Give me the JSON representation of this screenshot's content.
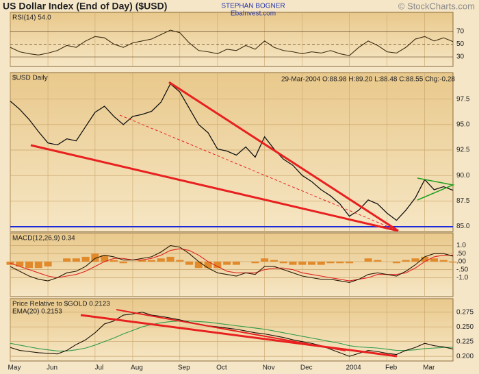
{
  "header": {
    "title": "US Dollar Index (End of Day) ($USD)",
    "author": "STEPHAN BOGNER",
    "site": "EbaInvest.com",
    "copyright": "© StockCharts.com",
    "quote": "29-Mar-2004 O:88.98 H:89.20 L:88.48 C:88.55 Chg:-0.28"
  },
  "chart_data": [
    {
      "type": "line",
      "label": "RSI(14) 54.0",
      "ylim": [
        15,
        100
      ],
      "yticks": [
        70,
        50,
        30
      ],
      "grid": true,
      "series": [
        {
          "color": "#3a2a10",
          "values": [
            45,
            38,
            35,
            33,
            36,
            40,
            48,
            45,
            55,
            62,
            60,
            50,
            45,
            52,
            55,
            58,
            65,
            72,
            68,
            52,
            40,
            38,
            35,
            42,
            40,
            48,
            42,
            55,
            45,
            40,
            38,
            35,
            38,
            36,
            40,
            35,
            32,
            45,
            55,
            48,
            38,
            36,
            45,
            58,
            62,
            55,
            60,
            54
          ]
        }
      ]
    },
    {
      "type": "line",
      "label": "$USD Daily",
      "ylim": [
        84.5,
        100.1
      ],
      "yticks": [
        {
          "value": 97.5,
          "label": "97.5"
        },
        {
          "value": 95,
          "label": "95.0"
        },
        {
          "value": 92.5,
          "label": "92.5"
        },
        {
          "value": 90,
          "label": "90.0"
        },
        {
          "value": 87.5,
          "label": "87.5"
        },
        {
          "value": 85,
          "label": "85.0"
        }
      ],
      "grid": true,
      "series": [
        {
          "color": "#111111",
          "values": [
            97.3,
            96.5,
            95.5,
            94.3,
            93.2,
            93.0,
            93.6,
            93.4,
            94.8,
            96.2,
            96.8,
            95.8,
            95.0,
            95.8,
            96.0,
            96.3,
            97.2,
            99.0,
            98.2,
            96.6,
            95.0,
            94.2,
            92.6,
            92.4,
            92.0,
            92.8,
            91.8,
            93.8,
            92.6,
            91.6,
            91.0,
            90.0,
            89.4,
            88.6,
            88.0,
            87.2,
            86.0,
            86.6,
            87.6,
            87.2,
            86.3,
            85.6,
            86.6,
            87.8,
            89.6,
            88.6,
            88.9,
            88.55
          ]
        }
      ]
    },
    {
      "type": "line",
      "label": "MACD(12,26,9) 0.34",
      "ylim": [
        -2.18,
        1.79
      ],
      "yticks": [
        {
          "value": 1,
          "label": "1.0"
        },
        {
          "value": 0.5,
          "label": ".50"
        },
        {
          "value": 0,
          "label": ".00"
        },
        {
          "value": -0.5,
          "label": "-.50"
        },
        {
          "value": -1,
          "label": "-1.0"
        }
      ],
      "grid": true,
      "series": [
        {
          "type": "bar",
          "color": "#e08a2c",
          "values": [
            -0.2,
            -0.3,
            -0.4,
            -0.4,
            -0.3,
            0,
            0.2,
            0.2,
            0.3,
            0.5,
            0.4,
            0.1,
            -0.1,
            0,
            0.1,
            0.1,
            0.2,
            0.3,
            0.1,
            -0.2,
            -0.4,
            -0.4,
            -0.4,
            -0.2,
            -0.2,
            0,
            -0.1,
            0.2,
            0.1,
            -0.1,
            -0.2,
            -0.2,
            -0.2,
            -0.2,
            -0.1,
            -0.1,
            -0.1,
            0,
            0.2,
            0.1,
            0,
            -0.1,
            0.1,
            0.2,
            0.3,
            0.2,
            0.1,
            -0.06
          ]
        },
        {
          "color": "#e02020",
          "values": [
            -0.1,
            -0.3,
            -0.5,
            -0.7,
            -0.9,
            -1.0,
            -0.9,
            -0.8,
            -0.6,
            -0.3,
            0.0,
            0.2,
            0.2,
            0.1,
            0.1,
            0.2,
            0.4,
            0.7,
            0.8,
            0.7,
            0.4,
            0.0,
            -0.3,
            -0.6,
            -0.7,
            -0.7,
            -0.7,
            -0.5,
            -0.4,
            -0.4,
            -0.5,
            -0.7,
            -0.8,
            -0.9,
            -1.0,
            -1.1,
            -1.2,
            -1.1,
            -1.0,
            -0.8,
            -0.8,
            -0.8,
            -0.7,
            -0.4,
            0.0,
            0.3,
            0.4,
            0.4
          ]
        },
        {
          "color": "#2a1a08",
          "values": [
            -0.3,
            -0.6,
            -0.9,
            -1.1,
            -1.2,
            -1.0,
            -0.7,
            -0.6,
            -0.3,
            0.2,
            0.4,
            0.3,
            0.1,
            0.1,
            0.2,
            0.3,
            0.6,
            1.0,
            0.9,
            0.5,
            0.0,
            -0.4,
            -0.7,
            -0.8,
            -0.9,
            -0.7,
            -0.8,
            -0.3,
            -0.3,
            -0.5,
            -0.7,
            -0.9,
            -1.0,
            -1.1,
            -1.1,
            -1.2,
            -1.3,
            -1.1,
            -0.8,
            -0.7,
            -0.8,
            -0.9,
            -0.6,
            -0.2,
            0.3,
            0.5,
            0.5,
            0.34
          ]
        }
      ]
    },
    {
      "type": "line",
      "label": "Price Relative to $GOLD 0.2123",
      "ylim": [
        0.192,
        0.298
      ],
      "yticks": [
        0.275,
        {
          "value": 0.25,
          "label": "0.250"
        },
        0.225,
        {
          "value": 0.2,
          "label": "0.200"
        }
      ],
      "grid": true,
      "categories": [
        "May",
        null,
        null,
        null,
        "Jun",
        null,
        null,
        null,
        null,
        "Jul",
        null,
        null,
        null,
        "Aug",
        null,
        null,
        null,
        null,
        "Sep",
        null,
        null,
        null,
        "Oct",
        null,
        null,
        null,
        null,
        "Nov",
        null,
        null,
        null,
        "Dec",
        null,
        null,
        null,
        null,
        "2004",
        null,
        null,
        null,
        "Feb",
        null,
        null,
        null,
        "Mar",
        null,
        null,
        null
      ],
      "series": [
        {
          "name": "EMA(20) 0.2153",
          "color": "#2e9a4a",
          "values": [
            0.222,
            0.219,
            0.216,
            0.213,
            0.211,
            0.209,
            0.209,
            0.211,
            0.214,
            0.219,
            0.225,
            0.231,
            0.238,
            0.244,
            0.25,
            0.254,
            0.257,
            0.259,
            0.26,
            0.26,
            0.259,
            0.258,
            0.256,
            0.254,
            0.252,
            0.25,
            0.248,
            0.246,
            0.243,
            0.24,
            0.237,
            0.234,
            0.231,
            0.228,
            0.225,
            0.222,
            0.218,
            0.216,
            0.215,
            0.214,
            0.212,
            0.21,
            0.21,
            0.211,
            0.213,
            0.214,
            0.215,
            0.2153
          ]
        },
        {
          "color": "#1a1008",
          "values": [
            0.215,
            0.21,
            0.208,
            0.206,
            0.205,
            0.204,
            0.21,
            0.22,
            0.228,
            0.24,
            0.255,
            0.26,
            0.27,
            0.272,
            0.275,
            0.27,
            0.268,
            0.265,
            0.262,
            0.258,
            0.255,
            0.252,
            0.25,
            0.248,
            0.246,
            0.243,
            0.24,
            0.238,
            0.235,
            0.232,
            0.228,
            0.225,
            0.222,
            0.218,
            0.212,
            0.206,
            0.2,
            0.205,
            0.21,
            0.208,
            0.205,
            0.203,
            0.21,
            0.215,
            0.222,
            0.218,
            0.216,
            0.2123
          ]
        }
      ]
    }
  ]
}
